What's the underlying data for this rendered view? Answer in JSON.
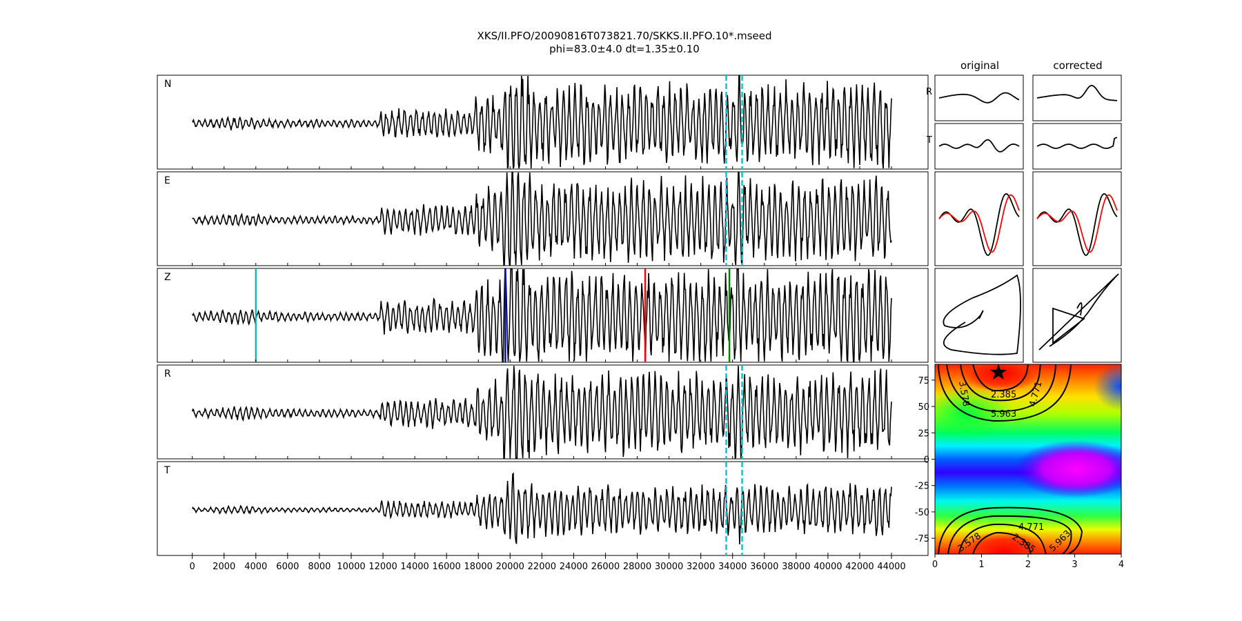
{
  "header": {
    "title": "XKS/II.PFO/20090816T073821.70/SKKS.II.PFO.10*.mseed",
    "subtitle": "phi=83.0±4.0 dt=1.35±0.10"
  },
  "columns": {
    "original": "original",
    "corrected": "corrected"
  },
  "chart_data": [
    {
      "type": "line",
      "name": "waveforms",
      "panels": [
        "N",
        "E",
        "Z",
        "R",
        "T"
      ],
      "x_ticks": [
        0,
        2000,
        4000,
        6000,
        8000,
        10000,
        12000,
        14000,
        16000,
        18000,
        20000,
        22000,
        24000,
        26000,
        28000,
        30000,
        32000,
        34000,
        36000,
        38000,
        40000,
        42000,
        44000
      ],
      "xlim": [
        -2200,
        46300
      ],
      "window_markers": {
        "panels": [
          "N",
          "E",
          "R",
          "T"
        ],
        "x": [
          33600,
          34600
        ],
        "color": "#17becf"
      },
      "z_phase_markers": [
        {
          "x": 4000,
          "color": "#00bfbf"
        },
        {
          "x": 19700,
          "color": "#0000ff"
        },
        {
          "x": 28500,
          "color": "#ff0000"
        },
        {
          "x": 33800,
          "color": "#008000"
        }
      ]
    },
    {
      "type": "line",
      "name": "particle-motion",
      "row_labels": [
        "R",
        "T"
      ],
      "series_colors": [
        "#000000",
        "#ff0000"
      ]
    },
    {
      "type": "heatmap",
      "name": "error-surface",
      "x_ticks": [
        0,
        1,
        2,
        3,
        4
      ],
      "y_ticks": [
        75,
        50,
        25,
        0,
        -25,
        -50,
        -75
      ],
      "xlim": [
        0,
        4
      ],
      "ylim": [
        -90,
        90
      ],
      "best": {
        "dt": 1.35,
        "phi": 83.0
      },
      "contour_labels": [
        "3.578",
        "2.385",
        "4.771",
        "5.963",
        "4.771",
        "3.578",
        "2.385",
        "5.963"
      ]
    }
  ]
}
